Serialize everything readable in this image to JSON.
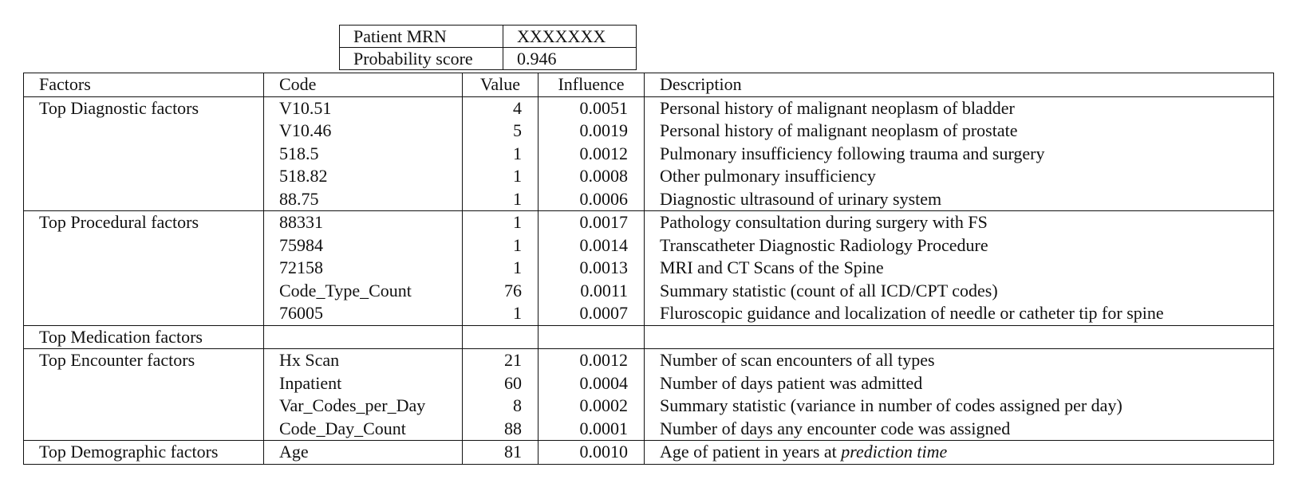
{
  "header": {
    "rows": [
      {
        "label": "Patient MRN",
        "value": "XXXXXXX"
      },
      {
        "label": "Probability score",
        "value": "0.946"
      }
    ]
  },
  "table": {
    "columns": [
      "Factors",
      "Code",
      "Value",
      "Influence",
      "Description"
    ],
    "groups": [
      {
        "factor": "Top Diagnostic factors",
        "rows": [
          {
            "code": "V10.51",
            "value": "4",
            "influence": "0.0051",
            "description": "Personal history of malignant neoplasm of bladder"
          },
          {
            "code": "V10.46",
            "value": "5",
            "influence": "0.0019",
            "description": "Personal history of malignant neoplasm of prostate"
          },
          {
            "code": "518.5",
            "value": "1",
            "influence": "0.0012",
            "description": "Pulmonary insufficiency following trauma and surgery"
          },
          {
            "code": "518.82",
            "value": "1",
            "influence": "0.0008",
            "description": "Other pulmonary insufficiency"
          },
          {
            "code": "88.75",
            "value": "1",
            "influence": "0.0006",
            "description": "Diagnostic ultrasound of urinary system"
          }
        ]
      },
      {
        "factor": "Top Procedural factors",
        "rows": [
          {
            "code": "88331",
            "value": "1",
            "influence": "0.0017",
            "description": "Pathology consultation during surgery with FS"
          },
          {
            "code": "75984",
            "value": "1",
            "influence": "0.0014",
            "description": "Transcatheter Diagnostic Radiology Procedure"
          },
          {
            "code": "72158",
            "value": "1",
            "influence": "0.0013",
            "description": "MRI and CT Scans of the Spine"
          },
          {
            "code": "Code_Type_Count",
            "value": "76",
            "influence": "0.0011",
            "description": "Summary statistic (count of all ICD/CPT codes)"
          },
          {
            "code": "76005",
            "value": "1",
            "influence": "0.0007",
            "description": "Fluroscopic guidance and localization of needle or catheter tip for spine"
          }
        ]
      },
      {
        "factor": "Top Medication factors",
        "rows": [
          {
            "code": "",
            "value": "",
            "influence": "",
            "description": ""
          }
        ]
      },
      {
        "factor": "Top Encounter factors",
        "rows": [
          {
            "code": "Hx Scan",
            "value": "21",
            "influence": "0.0012",
            "description": "Number of scan encounters of all types"
          },
          {
            "code": "Inpatient",
            "value": "60",
            "influence": "0.0004",
            "description": "Number of days patient was admitted"
          },
          {
            "code": "Var_Codes_per_Day",
            "value": "8",
            "influence": "0.0002",
            "description": "Summary statistic (variance in number of codes assigned per day)"
          },
          {
            "code": "Code_Day_Count",
            "value": "88",
            "influence": "0.0001",
            "description": "Number of days any encounter code was assigned"
          }
        ]
      },
      {
        "factor": "Top Demographic factors",
        "rows": [
          {
            "code": "Age",
            "value": "81",
            "influence": "0.0010",
            "description": "Age of patient in years at ",
            "description_italic": "prediction time"
          }
        ]
      }
    ]
  }
}
